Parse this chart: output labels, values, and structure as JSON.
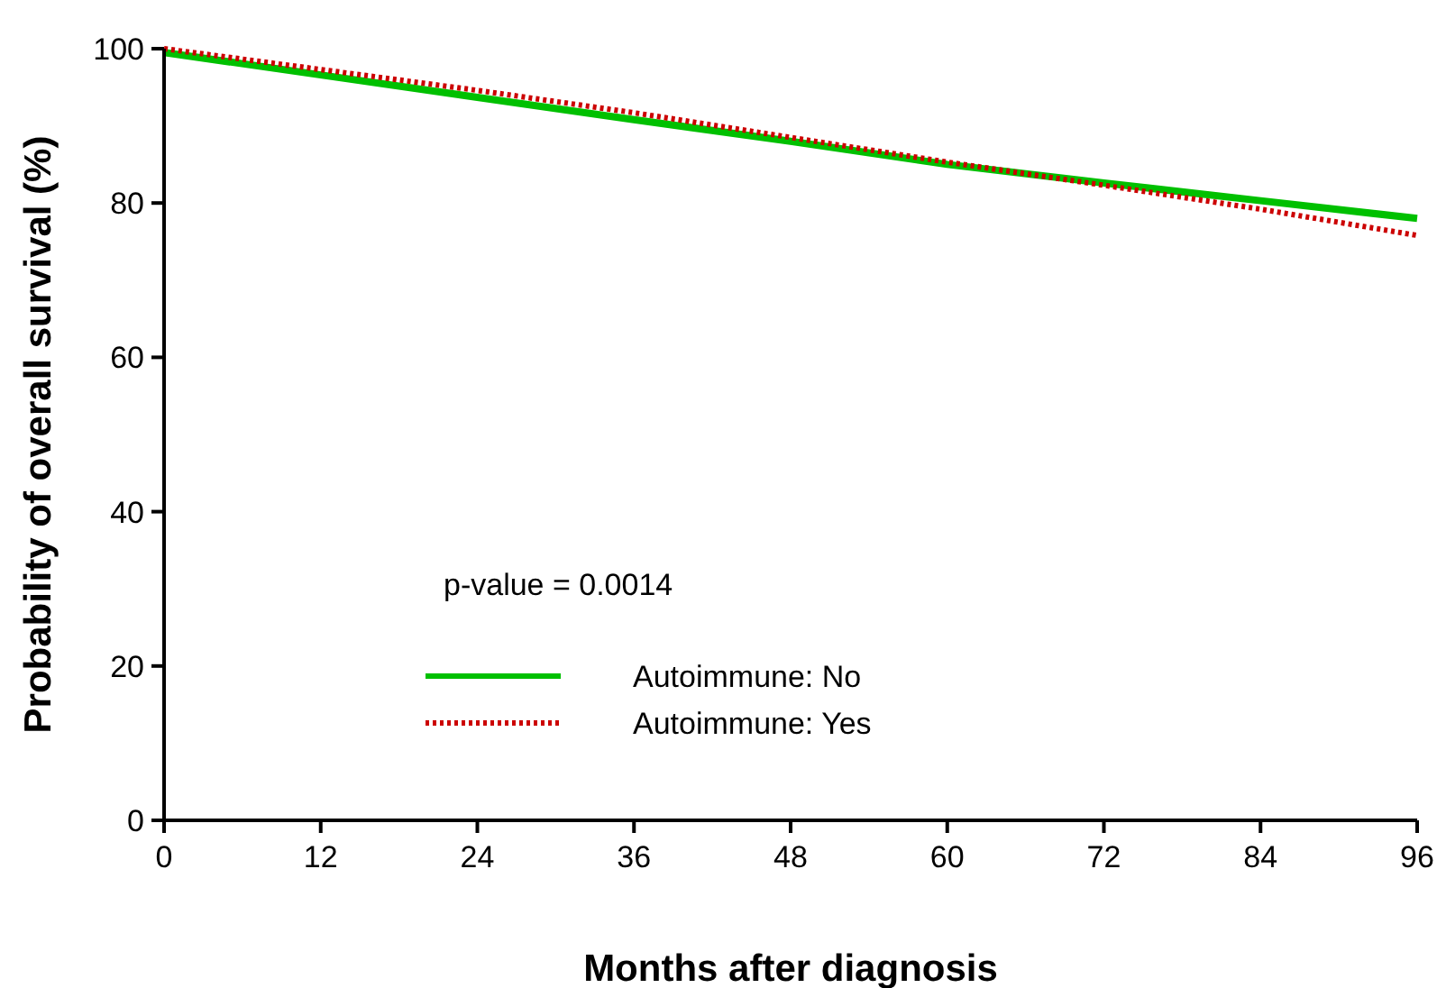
{
  "chart_data": {
    "type": "line",
    "xlabel": "Months after diagnosis",
    "ylabel": "Probability of overall survival (%)",
    "x": [
      0,
      12,
      24,
      36,
      48,
      60,
      72,
      84,
      96
    ],
    "series": [
      {
        "name": "Autoimmune: No",
        "color": "#00c000",
        "line_style": "solid",
        "values": [
          99.5,
          96.6,
          93.7,
          90.8,
          88,
          85,
          82.6,
          80.3,
          78
        ]
      },
      {
        "name": "Autoimmune: Yes",
        "color": "#cc0000",
        "line_style": "dotted",
        "values": [
          100,
          97.3,
          94.6,
          91.7,
          88.5,
          85.3,
          82.3,
          79.2,
          75.8
        ]
      }
    ],
    "xlim": [
      0,
      96
    ],
    "xticks": [
      0,
      12,
      24,
      36,
      48,
      60,
      72,
      84,
      96
    ],
    "ylim": [
      0,
      100
    ],
    "yticks": [
      0,
      20,
      40,
      60,
      80,
      100
    ],
    "grid": false,
    "legend": "bottom left",
    "marker": "none",
    "annotations": [
      "p-value = 0.0014"
    ]
  }
}
